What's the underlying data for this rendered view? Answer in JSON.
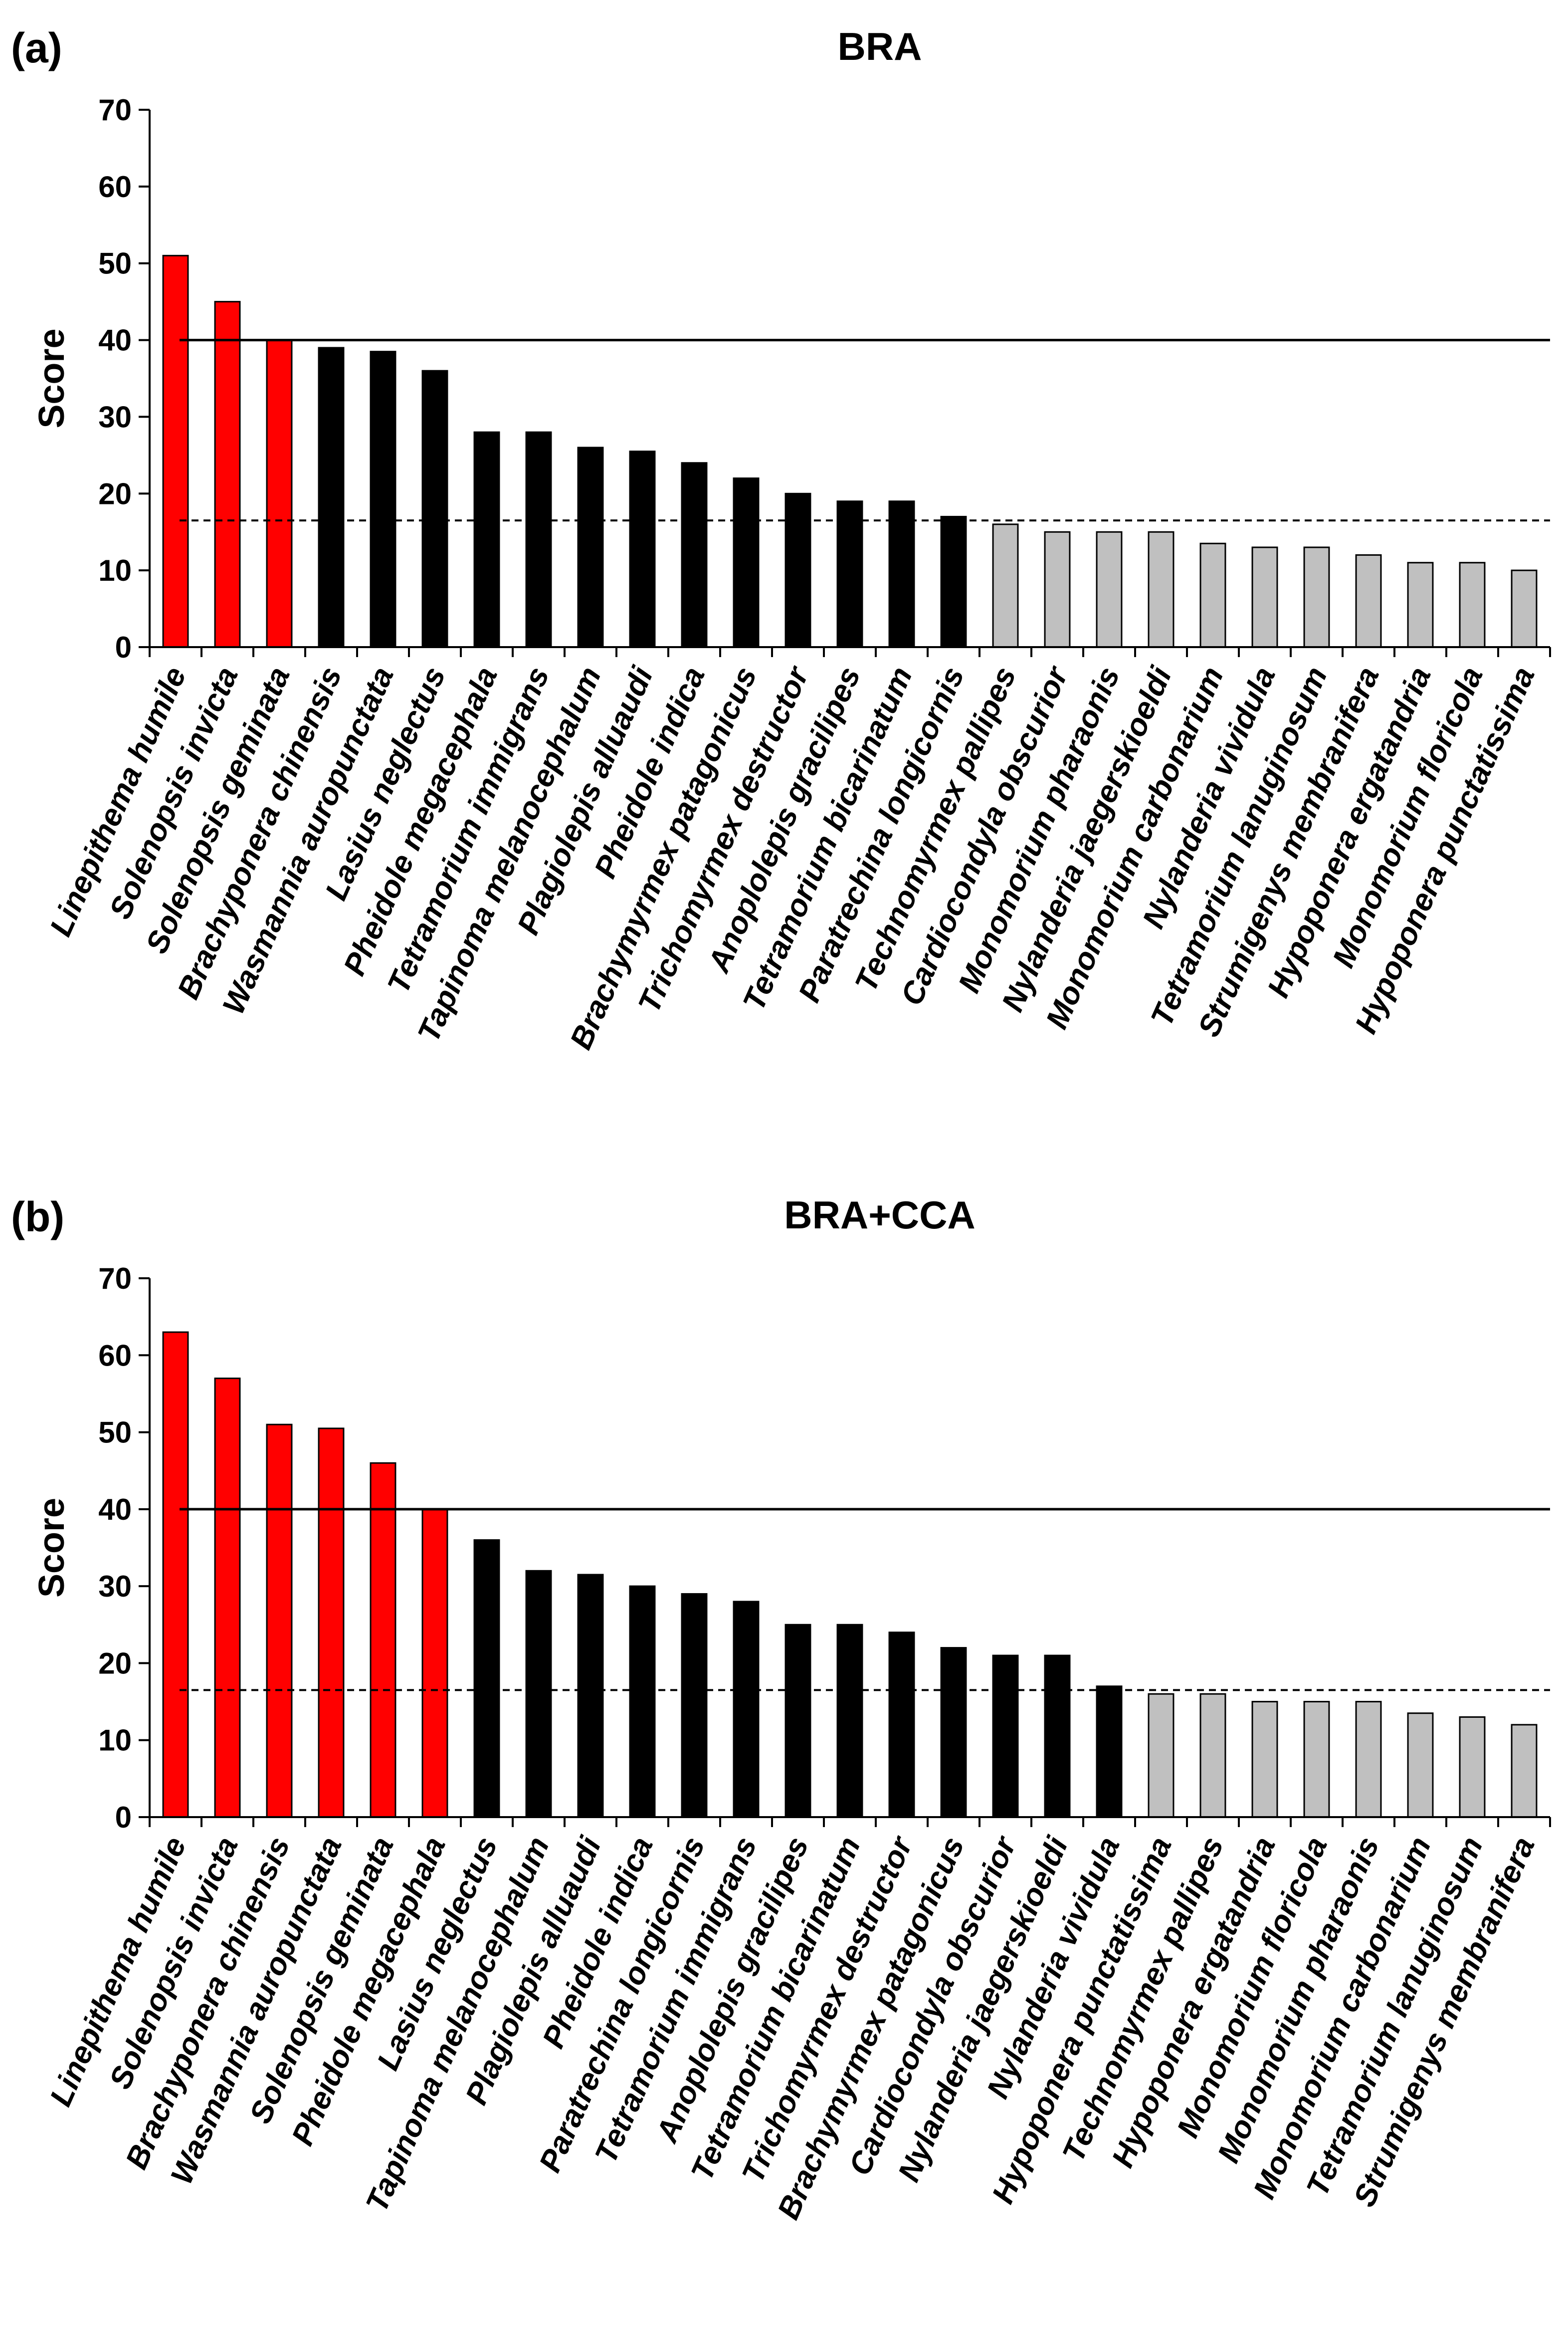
{
  "colors": {
    "above_threshold": "#ff0000",
    "mid": "#000000",
    "below": "#c0c0c0",
    "bar_outline": "#000000"
  },
  "chart_data": [
    {
      "panel": "(a)",
      "type": "bar",
      "title": "BRA",
      "xlabel": "",
      "ylabel": "Score",
      "ylim": [
        0,
        70
      ],
      "yticks": [
        0,
        10,
        20,
        30,
        40,
        50,
        60,
        70
      ],
      "reference_lines": [
        {
          "style": "solid",
          "value": 40
        },
        {
          "style": "dashed",
          "value": 16.5
        }
      ],
      "grid": false,
      "categories": [
        "Linepithema humile",
        "Solenopsis invicta",
        "Solenopsis geminata",
        "Brachyponera chinensis",
        "Wasmannia auropunctata",
        "Lasius neglectus",
        "Pheidole megacephala",
        "Tetramorium immigrans",
        "Tapinoma melanocephalum",
        "Plagiolepis alluaudi",
        "Pheidole indica",
        "Brachymyrmex patagonicus",
        "Trichomyrmex destructor",
        "Anoplolepis gracilipes",
        "Tetramorium bicarinatum",
        "Paratrechina longicornis",
        "Technomyrmex pallipes",
        "Cardiocondyla obscurior",
        "Monomorium pharaonis",
        "Nylanderia jaegerskioeldi",
        "Monomorium carbonarium",
        "Nylanderia vividula",
        "Tetramorium lanuginosum",
        "Strumigenys membranifera",
        "Hypoponera ergatandria",
        "Monomorium floricola",
        "Hypoponera punctatissima"
      ],
      "values": [
        51,
        45,
        40,
        39,
        38.5,
        36,
        28,
        28,
        26,
        25.5,
        24,
        22,
        20,
        19,
        19,
        17,
        16,
        15,
        15,
        15,
        13.5,
        13,
        13,
        12,
        11,
        11,
        10
      ],
      "bar_colors": [
        "above_threshold",
        "above_threshold",
        "above_threshold",
        "mid",
        "mid",
        "mid",
        "mid",
        "mid",
        "mid",
        "mid",
        "mid",
        "mid",
        "mid",
        "mid",
        "mid",
        "mid",
        "below",
        "below",
        "below",
        "below",
        "below",
        "below",
        "below",
        "below",
        "below",
        "below",
        "below"
      ]
    },
    {
      "panel": "(b)",
      "type": "bar",
      "title": "BRA+CCA",
      "xlabel": "",
      "ylabel": "Score",
      "ylim": [
        0,
        70
      ],
      "yticks": [
        0,
        10,
        20,
        30,
        40,
        50,
        60,
        70
      ],
      "reference_lines": [
        {
          "style": "solid",
          "value": 40
        },
        {
          "style": "dashed",
          "value": 16.5
        }
      ],
      "grid": false,
      "categories": [
        "Linepithema humile",
        "Solenopsis invicta",
        "Brachyponera chinensis",
        "Wasmannia auropunctata",
        "Solenopsis geminata",
        "Pheidole megacephala",
        "Lasius neglectus",
        "Tapinoma melanocephalum",
        "Plagiolepis alluaudi",
        "Pheidole indica",
        "Paratrechina longicornis",
        "Tetramorium immigrans",
        "Anoplolepis gracilipes",
        "Tetramorium bicarinatum",
        "Trichomyrmex destructor",
        "Brachymyrmex patagonicus",
        "Cardiocondyla obscurior",
        "Nylanderia jaegerskioeldi",
        "Nylanderia vividula",
        "Hypoponera punctatissima",
        "Technomyrmex pallipes",
        "Hypoponera ergatandria",
        "Monomorium floricola",
        "Monomorium pharaonis",
        "Monomorium carbonarium",
        "Tetramorium lanuginosum",
        "Strumigenys membranifera"
      ],
      "values": [
        63,
        57,
        51,
        50.5,
        46,
        40,
        36,
        32,
        31.5,
        30,
        29,
        28,
        25,
        25,
        24,
        22,
        21,
        21,
        17,
        16,
        16,
        15,
        15,
        15,
        13.5,
        13,
        12
      ],
      "bar_colors": [
        "above_threshold",
        "above_threshold",
        "above_threshold",
        "above_threshold",
        "above_threshold",
        "above_threshold",
        "mid",
        "mid",
        "mid",
        "mid",
        "mid",
        "mid",
        "mid",
        "mid",
        "mid",
        "mid",
        "mid",
        "mid",
        "mid",
        "below",
        "below",
        "below",
        "below",
        "below",
        "below",
        "below",
        "below"
      ]
    }
  ]
}
